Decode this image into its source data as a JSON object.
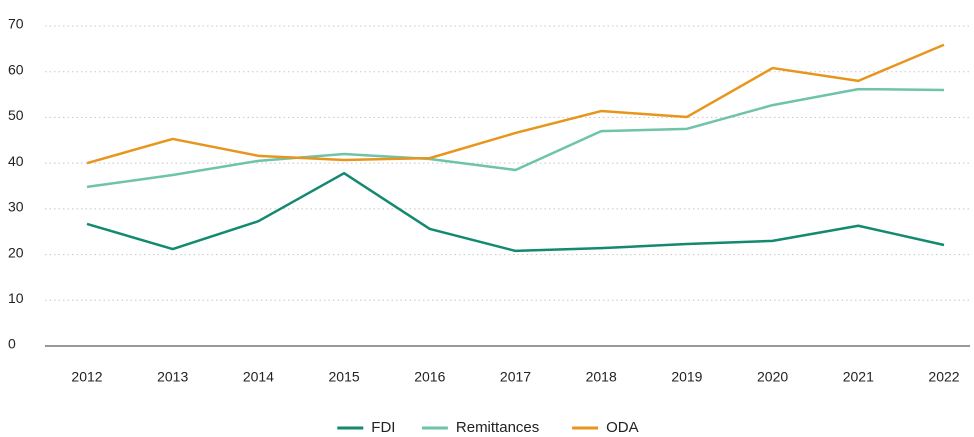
{
  "chart_data": {
    "type": "line",
    "categories": [
      "2012",
      "2013",
      "2014",
      "2015",
      "2016",
      "2017",
      "2018",
      "2019",
      "2020",
      "2021",
      "2022"
    ],
    "series": [
      {
        "name": "FDI",
        "color": "#138a6f",
        "values": [
          26.7,
          21.2,
          27.3,
          37.8,
          25.6,
          20.8,
          21.4,
          22.3,
          23.0,
          26.3,
          22.1
        ]
      },
      {
        "name": "Remittances",
        "color": "#6ec3a8",
        "values": [
          34.8,
          37.4,
          40.5,
          42.0,
          40.9,
          38.5,
          47.0,
          47.5,
          52.7,
          56.2,
          56.0
        ]
      },
      {
        "name": "ODA",
        "color": "#e8951c",
        "values": [
          40.0,
          45.3,
          41.6,
          40.7,
          41.1,
          46.6,
          51.4,
          50.1,
          60.8,
          58.0,
          65.9
        ]
      }
    ],
    "ylim": [
      0,
      70
    ],
    "yticks": [
      0,
      10,
      20,
      30,
      40,
      50,
      60,
      70
    ],
    "grid": true,
    "legend": "bottom"
  }
}
